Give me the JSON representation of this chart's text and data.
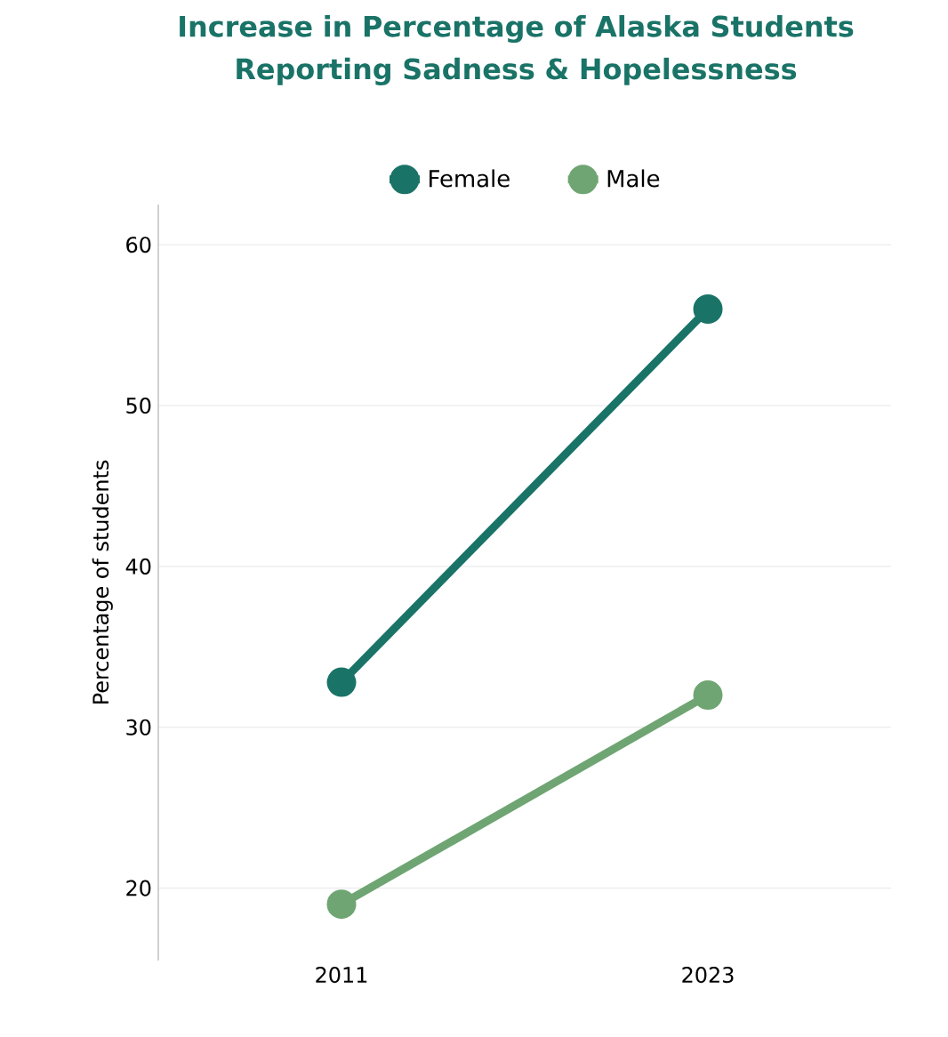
{
  "chart_data": {
    "type": "line",
    "title": "Increase in Percentage of Alaska Students Reporting Sadness & Hopelessness",
    "categories": [
      "2011",
      "2023"
    ],
    "series": [
      {
        "name": "Female",
        "color": "#1a7367",
        "values": [
          32.8,
          56
        ]
      },
      {
        "name": "Male",
        "color": "#6fa572",
        "values": [
          19,
          32
        ]
      }
    ],
    "ylabel": "Percentage of students",
    "ylim": [
      15.5,
      62.5
    ],
    "yticks": [
      20,
      30,
      40,
      50,
      60
    ],
    "grid": "y",
    "legend": "top",
    "marker": "circle",
    "line_style": "solid"
  }
}
